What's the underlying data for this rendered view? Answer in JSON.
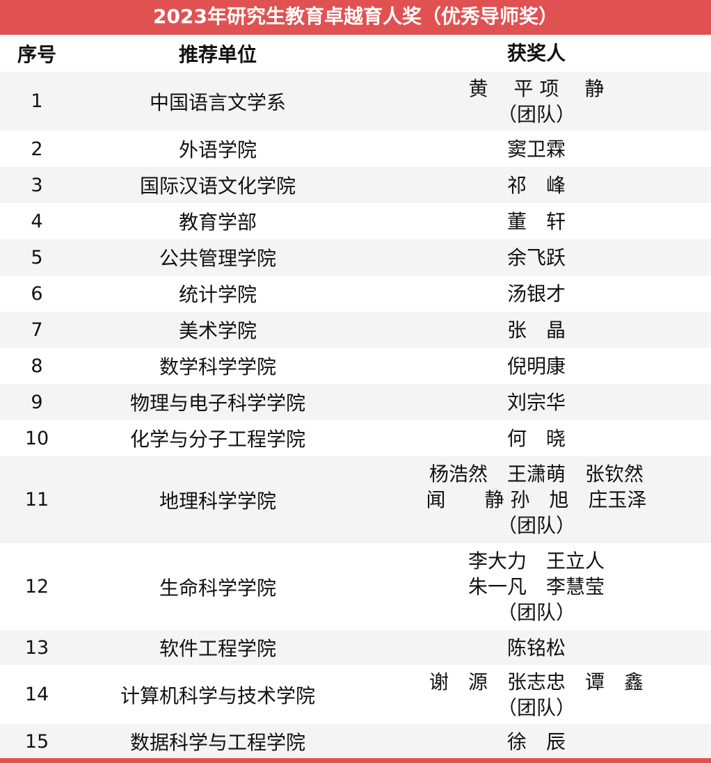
{
  "title": "2023年研究生教育卓越育人奖（优秀导师奖）",
  "headers": [
    "序号",
    "推荐单位",
    "获奖人"
  ],
  "rows": [
    {
      "no": "1",
      "unit": "中国语言文学系",
      "awardees": [
        "黄　 平 项　 静",
        "（团队）"
      ]
    },
    {
      "no": "2",
      "unit": "外语学院",
      "awardees": [
        "窦卫霖"
      ]
    },
    {
      "no": "3",
      "unit": "国际汉语文化学院",
      "awardees": [
        "祁　峰"
      ]
    },
    {
      "no": "4",
      "unit": "教育学部",
      "awardees": [
        "董　轩"
      ]
    },
    {
      "no": "5",
      "unit": "公共管理学院",
      "awardees": [
        "余飞跃"
      ]
    },
    {
      "no": "6",
      "unit": "统计学院",
      "awardees": [
        "汤银才"
      ]
    },
    {
      "no": "7",
      "unit": "美术学院",
      "awardees": [
        "张　晶"
      ]
    },
    {
      "no": "8",
      "unit": "数学科学学院",
      "awardees": [
        "倪明康"
      ]
    },
    {
      "no": "9",
      "unit": "物理与电子科学学院",
      "awardees": [
        "刘宗华"
      ]
    },
    {
      "no": "10",
      "unit": "化学与分子工程学院",
      "awardees": [
        "何　晓"
      ]
    },
    {
      "no": "11",
      "unit": "地理科学学院",
      "awardees": [
        "杨浩然　王潇萌　张钦然",
        "闻　　静 孙　旭　庄玉泽",
        "（团队）"
      ]
    },
    {
      "no": "12",
      "unit": "生命科学学院",
      "awardees": [
        "李大力　王立人",
        "朱一凡　李慧莹",
        "（团队）"
      ]
    },
    {
      "no": "13",
      "unit": "软件工程学院",
      "awardees": [
        "陈铭松"
      ]
    },
    {
      "no": "14",
      "unit": "计算机科学与技术学院",
      "awardees": [
        "谢　源　张志忠　谭　鑫",
        "（团队）"
      ]
    },
    {
      "no": "15",
      "unit": "数据科学与工程学院",
      "awardees": [
        "徐　辰"
      ]
    }
  ],
  "colors": {
    "accent": "#e05252",
    "alt_row": "#f4f4f4"
  }
}
